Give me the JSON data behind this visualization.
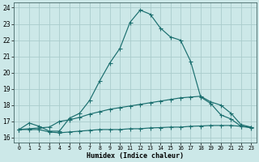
{
  "title": "",
  "xlabel": "Humidex (Indice chaleur)",
  "bg_color": "#cce8e8",
  "grid_color": "#aacccc",
  "line_color": "#1a6e6e",
  "xlim": [
    -0.5,
    23.5
  ],
  "ylim": [
    15.7,
    24.3
  ],
  "xticks": [
    0,
    1,
    2,
    3,
    4,
    5,
    6,
    7,
    8,
    9,
    10,
    11,
    12,
    13,
    14,
    15,
    16,
    17,
    18,
    19,
    20,
    21,
    22,
    23
  ],
  "yticks": [
    16,
    17,
    18,
    19,
    20,
    21,
    22,
    23,
    24
  ],
  "line1_x": [
    0,
    1,
    2,
    3,
    4,
    5,
    6,
    7,
    8,
    9,
    10,
    11,
    12,
    13,
    14,
    15,
    16,
    17,
    18,
    19,
    20,
    21,
    22,
    23
  ],
  "line1_y": [
    16.5,
    16.9,
    16.7,
    16.4,
    16.4,
    17.2,
    17.5,
    18.3,
    19.5,
    20.6,
    21.5,
    23.1,
    23.85,
    23.6,
    22.75,
    22.2,
    22.0,
    20.7,
    18.5,
    18.1,
    17.4,
    17.15,
    16.7,
    16.6
  ],
  "line2_x": [
    0,
    1,
    2,
    3,
    4,
    5,
    6,
    7,
    8,
    9,
    10,
    11,
    12,
    13,
    14,
    15,
    16,
    17,
    18,
    19,
    20,
    21,
    22,
    23
  ],
  "line2_y": [
    16.5,
    16.55,
    16.6,
    16.65,
    17.0,
    17.1,
    17.25,
    17.45,
    17.6,
    17.75,
    17.85,
    17.95,
    18.05,
    18.15,
    18.25,
    18.35,
    18.45,
    18.5,
    18.55,
    18.2,
    18.0,
    17.5,
    16.8,
    16.65
  ],
  "line3_x": [
    0,
    1,
    2,
    3,
    4,
    5,
    6,
    7,
    8,
    9,
    10,
    11,
    12,
    13,
    14,
    15,
    16,
    17,
    18,
    19,
    20,
    21,
    22,
    23
  ],
  "line3_y": [
    16.5,
    16.5,
    16.5,
    16.35,
    16.3,
    16.35,
    16.4,
    16.45,
    16.5,
    16.5,
    16.5,
    16.55,
    16.55,
    16.6,
    16.62,
    16.65,
    16.65,
    16.7,
    16.72,
    16.75,
    16.75,
    16.75,
    16.7,
    16.65
  ]
}
